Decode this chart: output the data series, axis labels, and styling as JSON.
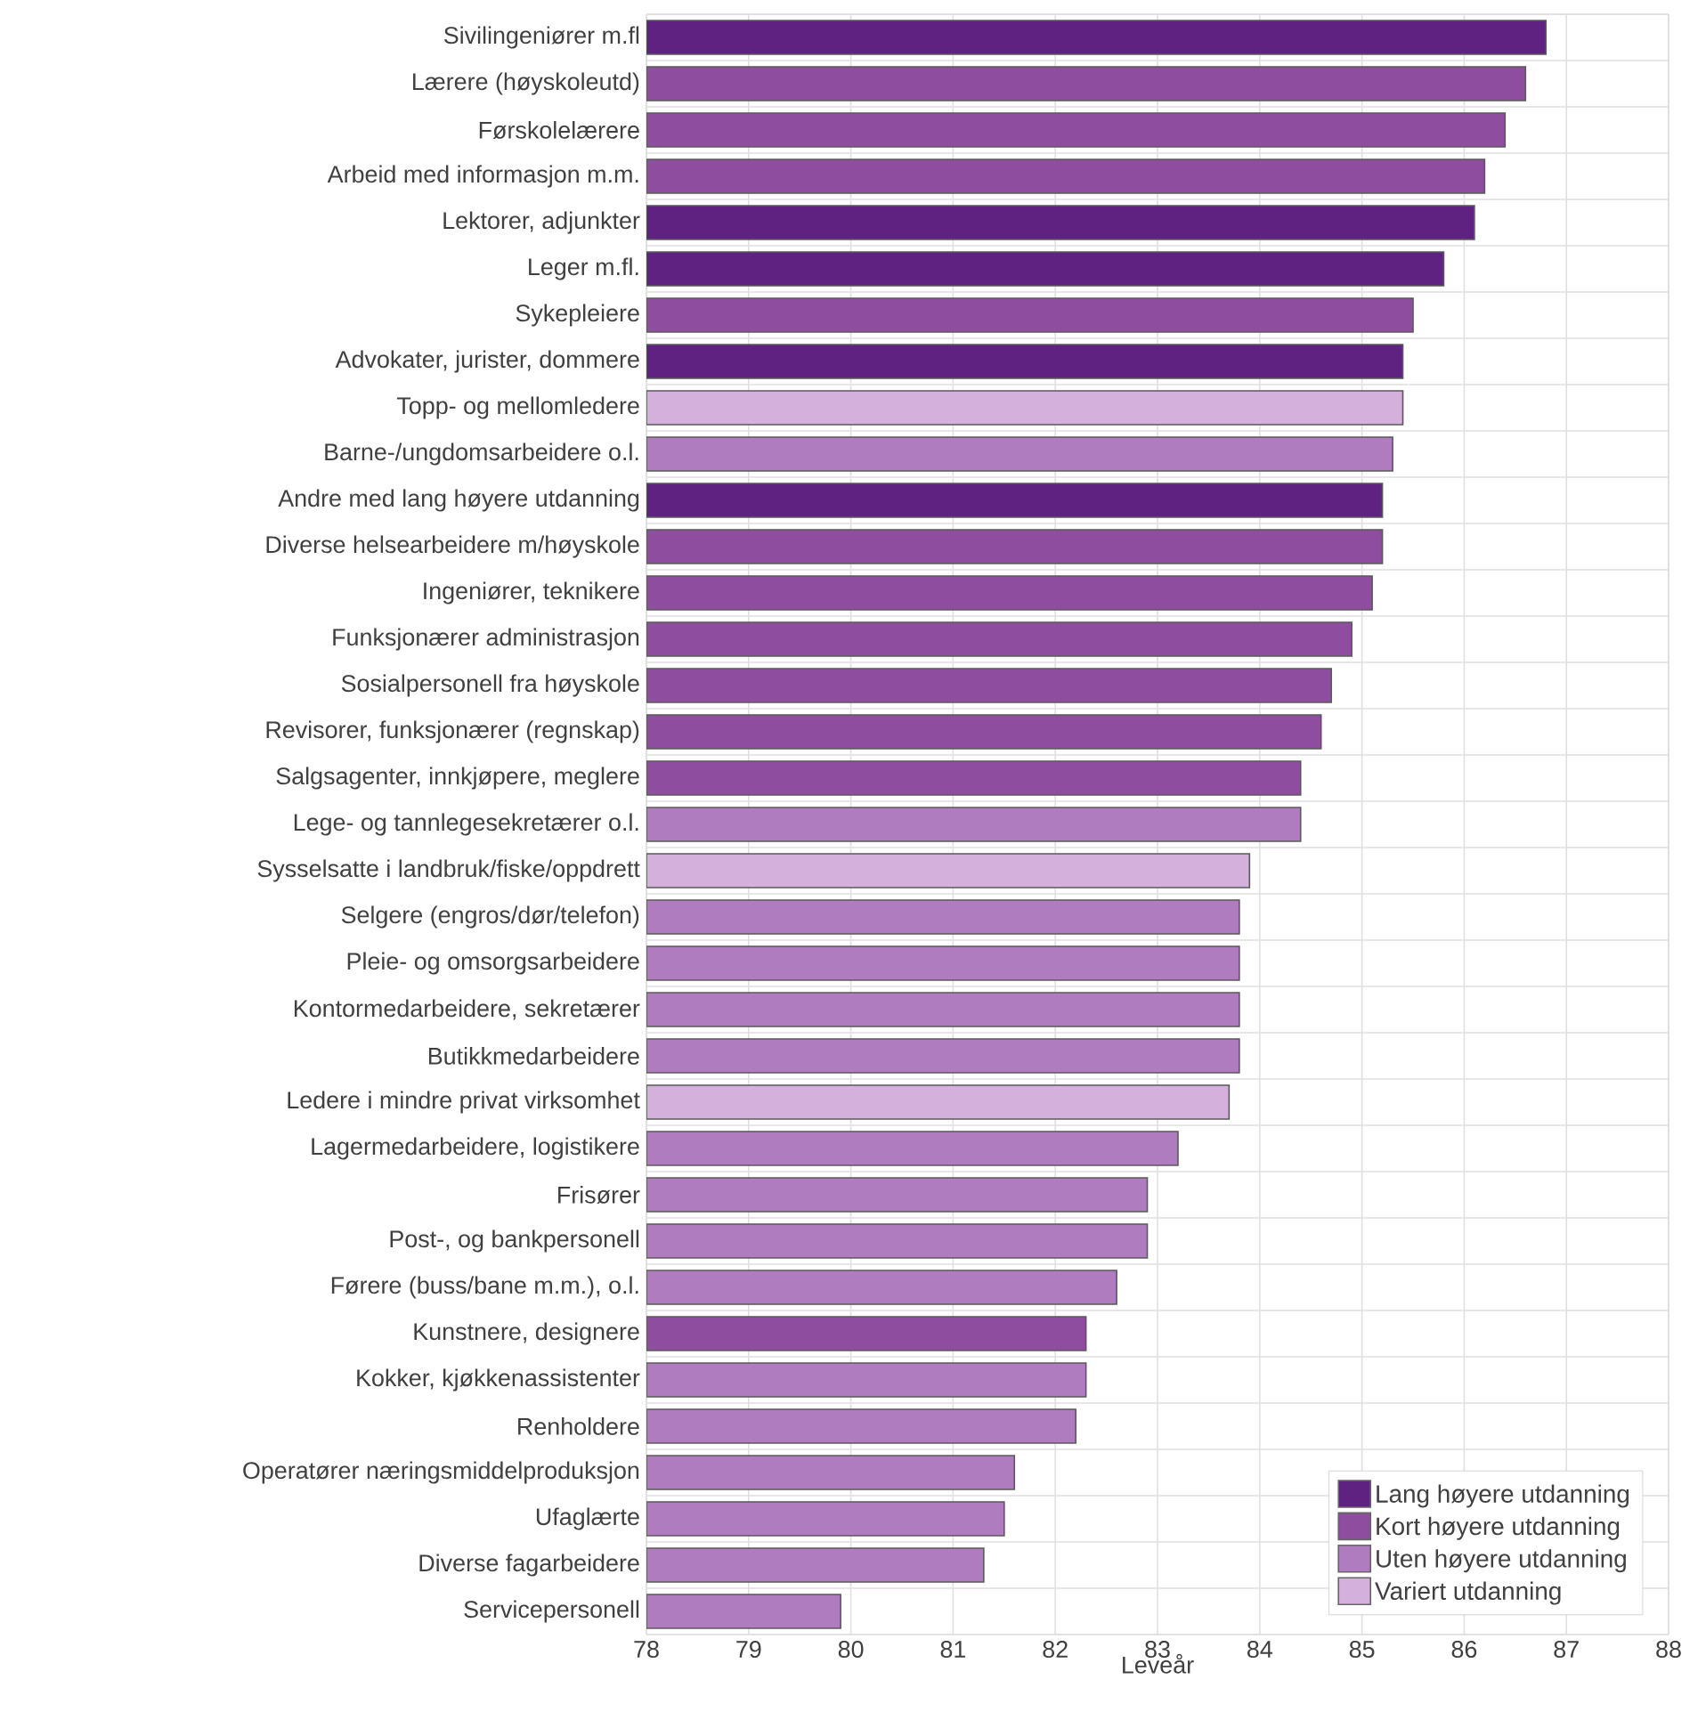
{
  "chart_data": {
    "type": "bar",
    "orientation": "horizontal",
    "xlabel": "Leveår",
    "categories": [
      "Sivilingeniører m.fl",
      "Lærere (høyskoleutd)",
      "Førskolelærere",
      "Arbeid med informasjon m.m.",
      "Lektorer, adjunkter",
      "Leger m.fl.",
      "Sykepleiere",
      "Advokater, jurister, dommere",
      "Topp- og mellomledere",
      "Barne-/ungdomsarbeidere o.l.",
      "Andre med lang høyere utdanning",
      "Diverse helsearbeidere m/høyskole",
      "Ingeniører, teknikere",
      "Funksjonærer administrasjon",
      "Sosialpersonell fra høyskole",
      "Revisorer, funksjonærer (regnskap)",
      "Salgsagenter, innkjøpere, meglere",
      "Lege- og tannlegesekretærer o.l.",
      "Sysselsatte i landbruk/fiske/oppdrett",
      "Selgere (engros/dør/telefon)",
      "Pleie- og omsorgsarbeidere",
      "Kontormedarbeidere, sekretærer",
      "Butikkmedarbeidere",
      "Ledere i mindre privat virksomhet",
      "Lagermedarbeidere, logistikere",
      "Frisører",
      "Post-, og bankpersonell",
      "Førere (buss/bane m.m.), o.l.",
      "Kunstnere, designere",
      "Kokker, kjøkkenassistenter",
      "Renholdere",
      "Operatører næringsmiddelproduksjon",
      "Ufaglærte",
      "Diverse fagarbeidere",
      "Servicepersonell"
    ],
    "series": [
      {
        "name": "Lang høyere utdanning",
        "color": "#5e2281",
        "values": [
          86.8,
          null,
          null,
          null,
          86.1,
          85.8,
          null,
          85.4,
          null,
          null,
          85.2,
          null,
          null,
          null,
          null,
          null,
          null,
          null,
          null,
          null,
          null,
          null,
          null,
          null,
          null,
          null,
          null,
          null,
          null,
          null,
          null,
          null,
          null,
          null,
          null
        ]
      },
      {
        "name": "Kort høyere utdanning",
        "color": "#8e4d9f",
        "values": [
          null,
          86.6,
          86.4,
          86.2,
          null,
          null,
          85.5,
          null,
          null,
          null,
          null,
          85.2,
          85.1,
          84.9,
          84.7,
          84.6,
          84.4,
          null,
          null,
          null,
          null,
          null,
          null,
          null,
          null,
          null,
          null,
          null,
          82.3,
          null,
          null,
          null,
          null,
          null,
          null
        ]
      },
      {
        "name": "Uten høyere utdanning",
        "color": "#b07cc0",
        "values": [
          null,
          null,
          null,
          null,
          null,
          null,
          null,
          null,
          null,
          85.3,
          null,
          null,
          null,
          null,
          null,
          null,
          null,
          84.4,
          null,
          83.8,
          83.8,
          83.8,
          83.8,
          null,
          83.2,
          82.9,
          82.9,
          82.6,
          null,
          82.3,
          82.2,
          81.6,
          81.5,
          81.3,
          79.9
        ]
      },
      {
        "name": "Variert utdanning",
        "color": "#d4b0dc",
        "values": [
          null,
          null,
          null,
          null,
          null,
          null,
          null,
          null,
          85.4,
          null,
          null,
          null,
          null,
          null,
          null,
          null,
          null,
          null,
          83.9,
          null,
          null,
          null,
          null,
          83.7,
          null,
          null,
          null,
          null,
          null,
          null,
          null,
          null,
          null,
          null,
          null
        ]
      }
    ],
    "xlim": [
      78,
      88
    ],
    "xticks": [
      78,
      79,
      80,
      81,
      82,
      83,
      84,
      85,
      86,
      87,
      88
    ],
    "grid": true,
    "legend": "bottom right"
  }
}
